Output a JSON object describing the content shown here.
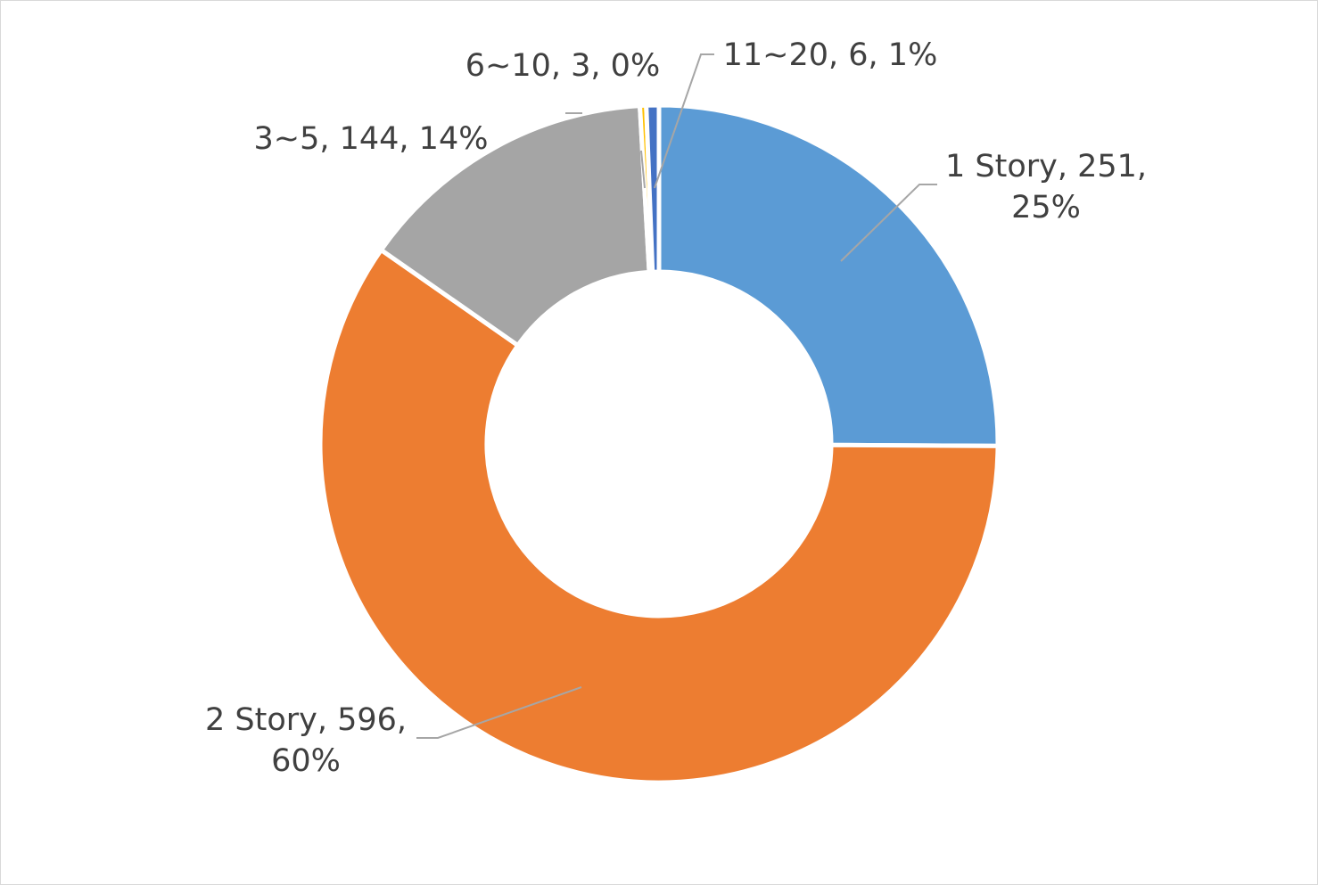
{
  "chart_data": {
    "type": "pie",
    "variant": "donut",
    "categories": [
      "1 Story",
      "2 Story",
      "3~5",
      "6~10",
      "11~20"
    ],
    "values": [
      251,
      596,
      144,
      3,
      6
    ],
    "percent_labels": [
      "25%",
      "60%",
      "14%",
      "0%",
      "1%"
    ],
    "colors": [
      "#5b9bd5",
      "#ed7d31",
      "#a5a5a5",
      "#ffc000",
      "#4472c4"
    ],
    "labels": [
      {
        "lines": [
          "1 Story, 251,",
          "25%"
        ]
      },
      {
        "lines": [
          "2 Story, 596,",
          "60%"
        ]
      },
      {
        "lines": [
          "3~5, 144, 14%"
        ]
      },
      {
        "lines": [
          "6~10, 3, 0%"
        ]
      },
      {
        "lines": [
          "11~20, 6, 1%"
        ]
      }
    ],
    "start_angle_deg": 0,
    "direction": "clockwise",
    "legend": "none"
  }
}
